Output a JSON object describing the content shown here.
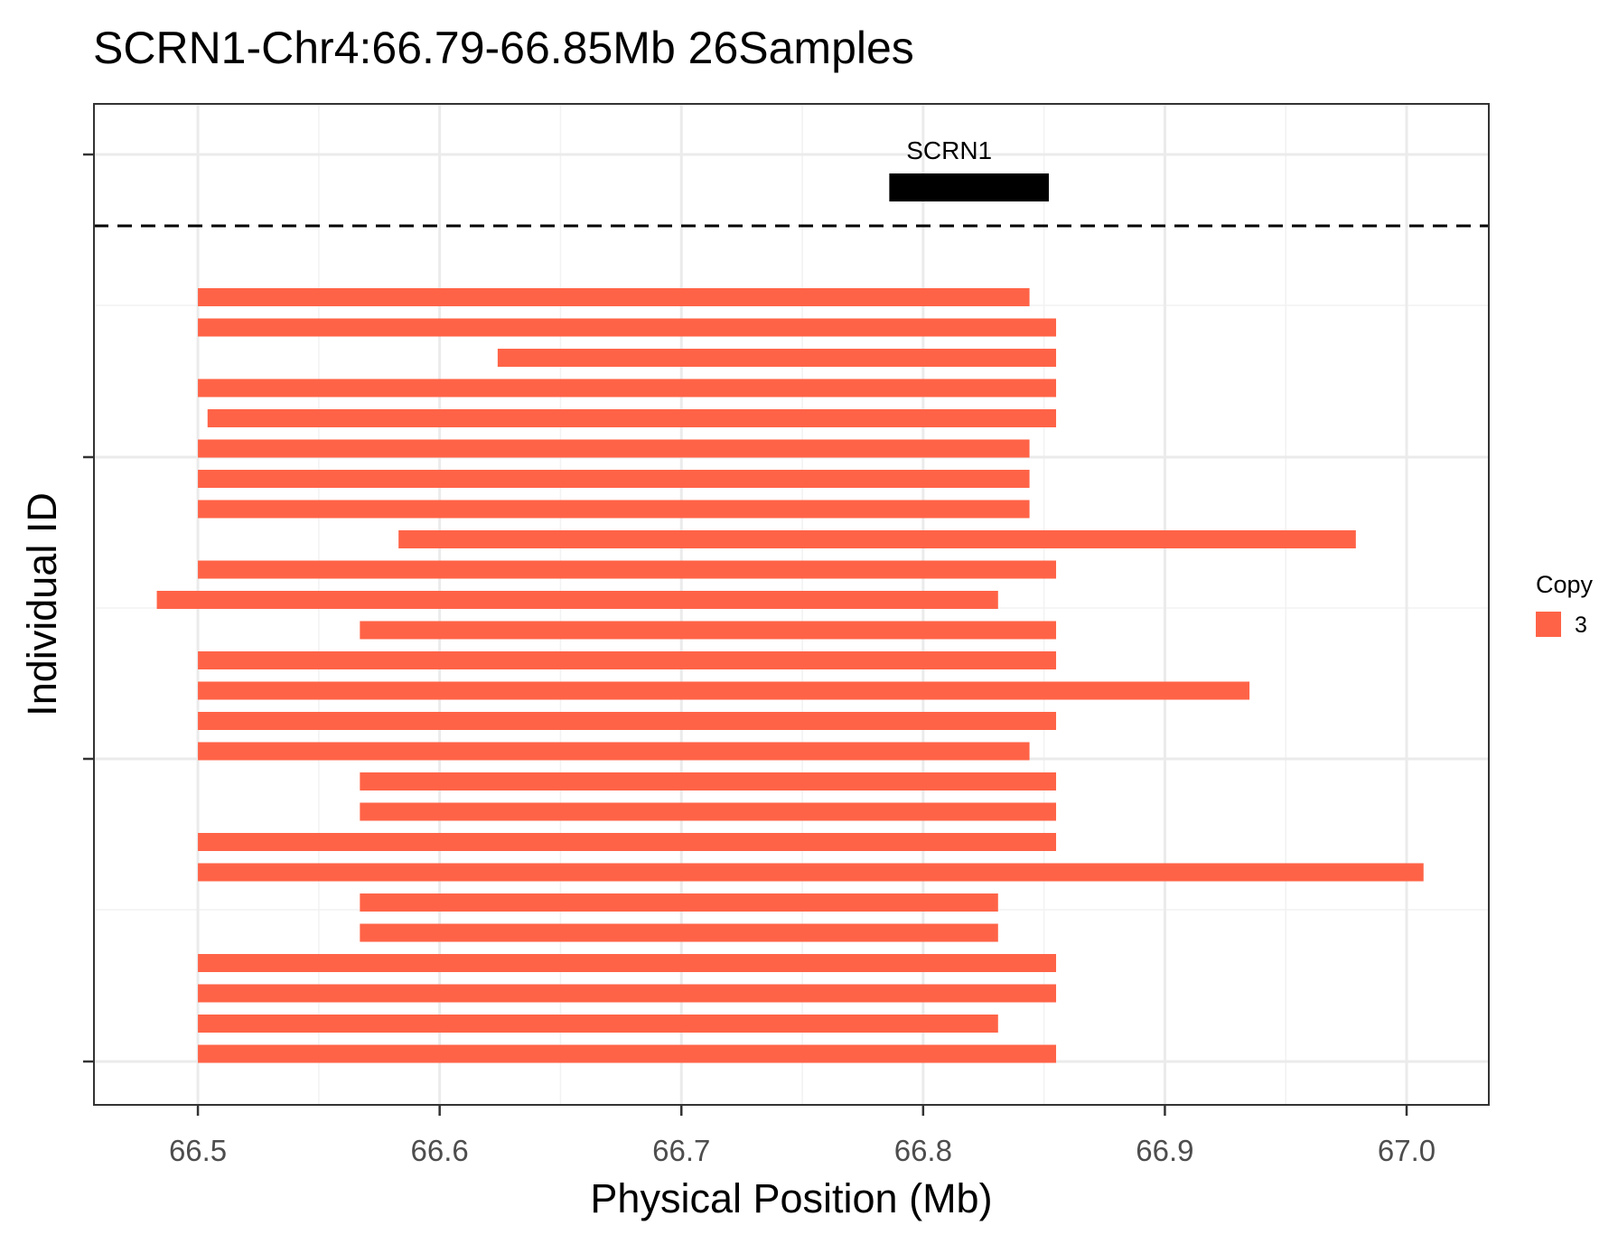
{
  "chart_data": {
    "type": "bar",
    "orientation": "horizontal-range",
    "title": "SCRN1-Chr4:66.79-66.85Mb 26Samples",
    "xlabel": "Physical Position (Mb)",
    "ylabel": "Individual ID",
    "xlim": [
      66.457,
      67.034
    ],
    "x_ticks": [
      "66.5",
      "66.6",
      "66.7",
      "66.8",
      "66.9",
      "67.0"
    ],
    "grid": true,
    "gene": {
      "name": "SCRN1",
      "start": 66.786,
      "end": 66.852,
      "color": "#000000"
    },
    "legend": {
      "title": "Copy",
      "position": "right",
      "items": [
        {
          "label": "3",
          "color": "#FF6347"
        }
      ]
    },
    "series": [
      {
        "name": "3",
        "color": "#FF6347"
      }
    ],
    "segments": [
      {
        "start": 66.5,
        "end": 66.844
      },
      {
        "start": 66.5,
        "end": 66.855
      },
      {
        "start": 66.624,
        "end": 66.855
      },
      {
        "start": 66.5,
        "end": 66.855
      },
      {
        "start": 66.504,
        "end": 66.855
      },
      {
        "start": 66.5,
        "end": 66.844
      },
      {
        "start": 66.5,
        "end": 66.844
      },
      {
        "start": 66.5,
        "end": 66.844
      },
      {
        "start": 66.583,
        "end": 66.979
      },
      {
        "start": 66.5,
        "end": 66.855
      },
      {
        "start": 66.483,
        "end": 66.831
      },
      {
        "start": 66.567,
        "end": 66.855
      },
      {
        "start": 66.5,
        "end": 66.855
      },
      {
        "start": 66.5,
        "end": 66.935
      },
      {
        "start": 66.5,
        "end": 66.855
      },
      {
        "start": 66.5,
        "end": 66.844
      },
      {
        "start": 66.567,
        "end": 66.855
      },
      {
        "start": 66.567,
        "end": 66.855
      },
      {
        "start": 66.5,
        "end": 66.855
      },
      {
        "start": 66.5,
        "end": 67.007
      },
      {
        "start": 66.567,
        "end": 66.831
      },
      {
        "start": 66.567,
        "end": 66.831
      },
      {
        "start": 66.5,
        "end": 66.855
      },
      {
        "start": 66.5,
        "end": 66.855
      },
      {
        "start": 66.5,
        "end": 66.831
      },
      {
        "start": 66.5,
        "end": 66.855
      }
    ]
  }
}
